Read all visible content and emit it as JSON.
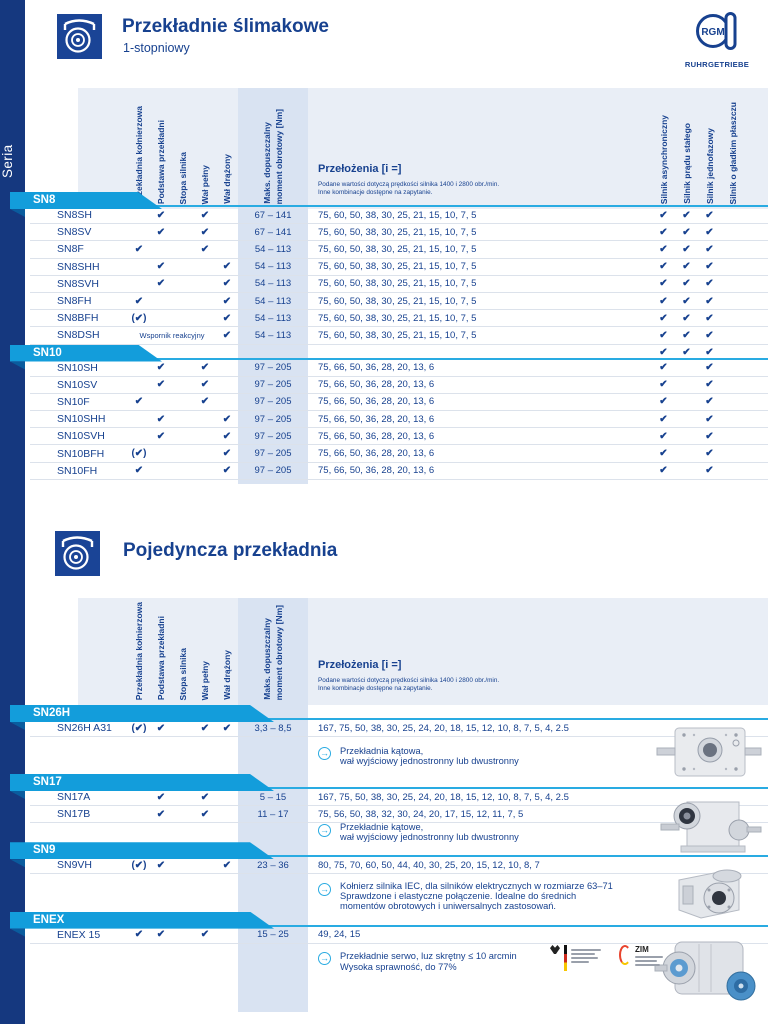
{
  "page": {
    "title": "Przekładnie ślimakowe",
    "subtitle": "1-stopniowy",
    "section2_title": "Pojedyncza przekładnia",
    "seria_label": "Seria",
    "brand": {
      "logo_text": "RGM",
      "name": "RUHRGETRIEBE"
    },
    "colors": {
      "navy": "#17418f",
      "azure_banner": "#139ddb",
      "cyan_line": "#29abe2",
      "header_panel": "#e9eef6",
      "torque_band": "#d9e3f2"
    }
  },
  "header_cols": {
    "features": [
      "Przekładnia kołnierzowa",
      "Podstawa przekładni",
      "Stopa silnika",
      "Wał pełny",
      "Wał drążony"
    ],
    "torque_lines": [
      "Maks. dopuszczalny",
      "moment obrotowy [Nm]"
    ],
    "ratios_title": "Przełożenia [i =]",
    "ratios_sub1": "Podane wartości dotyczą prędkości silnika 1400 i 2800 obr./min.",
    "ratios_sub2": "Inne kombinacje dostępne na zapytanie.",
    "motors": [
      "Silnik asynchroniczny",
      "Silnik prądu stałego",
      "Silnik jednofazowy",
      "Silnik o gładkim płaszczu"
    ]
  },
  "table1": {
    "groups": [
      {
        "name": "SN8",
        "banner_motors": [
          "",
          "",
          "",
          ""
        ],
        "rows": [
          {
            "model": "SN8SH",
            "features": [
              "",
              "✔",
              "",
              "✔",
              ""
            ],
            "torque": "67 – 141",
            "ratios": "75, 60, 50, 38, 30, 25, 21, 15, 10, 7, 5",
            "motors": [
              "✔",
              "✔",
              "✔",
              ""
            ]
          },
          {
            "model": "SN8SV",
            "features": [
              "",
              "✔",
              "",
              "✔",
              ""
            ],
            "torque": "67 – 141",
            "ratios": "75, 60, 50, 38, 30, 25, 21, 15, 10, 7, 5",
            "motors": [
              "✔",
              "✔",
              "✔",
              ""
            ]
          },
          {
            "model": "SN8F",
            "features": [
              "✔",
              "",
              "",
              "✔",
              ""
            ],
            "torque": "54 – 113",
            "ratios": "75, 60, 50, 38, 30, 25, 21, 15, 10, 7, 5",
            "motors": [
              "✔",
              "✔",
              "✔",
              ""
            ]
          },
          {
            "model": "SN8SHH",
            "features": [
              "",
              "✔",
              "",
              "",
              "✔"
            ],
            "torque": "54 – 113",
            "ratios": "75, 60, 50, 38, 30, 25, 21, 15, 10, 7, 5",
            "motors": [
              "✔",
              "✔",
              "✔",
              ""
            ]
          },
          {
            "model": "SN8SVH",
            "features": [
              "",
              "✔",
              "",
              "",
              "✔"
            ],
            "torque": "54 – 113",
            "ratios": "75, 60, 50, 38, 30, 25, 21, 15, 10, 7, 5",
            "motors": [
              "✔",
              "✔",
              "✔",
              ""
            ]
          },
          {
            "model": "SN8FH",
            "features": [
              "✔",
              "",
              "",
              "",
              "✔"
            ],
            "torque": "54 – 113",
            "ratios": "75, 60, 50, 38, 30, 25, 21, 15, 10, 7, 5",
            "motors": [
              "✔",
              "✔",
              "✔",
              ""
            ]
          },
          {
            "model": "SN8BFH",
            "features": [
              "(✔)",
              "",
              "",
              "",
              "✔"
            ],
            "torque": "54 – 113",
            "ratios": "75, 60, 50, 38, 30, 25, 21, 15, 10, 7, 5",
            "motors": [
              "✔",
              "✔",
              "✔",
              ""
            ]
          },
          {
            "model": "SN8DSH",
            "feature_note": "Wspornik reakcyjny",
            "features": [
              "",
              "",
              "",
              "",
              "✔"
            ],
            "torque": "54 – 113",
            "ratios": "75, 60, 50, 38, 30, 25, 21, 15, 10, 7, 5",
            "motors": [
              "✔",
              "✔",
              "✔",
              ""
            ]
          }
        ]
      },
      {
        "name": "SN10",
        "banner_motors": [
          "✔",
          "✔",
          "✔",
          ""
        ],
        "rows": [
          {
            "model": "SN10SH",
            "features": [
              "",
              "✔",
              "",
              "✔",
              ""
            ],
            "torque": "97 – 205",
            "ratios": "75, 66, 50, 36, 28, 20, 13, 6",
            "motors": [
              "✔",
              "",
              "✔",
              ""
            ]
          },
          {
            "model": "SN10SV",
            "features": [
              "",
              "✔",
              "",
              "✔",
              ""
            ],
            "torque": "97 – 205",
            "ratios": "75, 66, 50, 36, 28, 20, 13, 6",
            "motors": [
              "✔",
              "",
              "✔",
              ""
            ]
          },
          {
            "model": "SN10F",
            "features": [
              "✔",
              "",
              "",
              "✔",
              ""
            ],
            "torque": "97 – 205",
            "ratios": "75, 66, 50, 36, 28, 20, 13, 6",
            "motors": [
              "✔",
              "",
              "✔",
              ""
            ]
          },
          {
            "model": "SN10SHH",
            "features": [
              "",
              "✔",
              "",
              "",
              "✔"
            ],
            "torque": "97 – 205",
            "ratios": "75, 66, 50, 36, 28, 20, 13, 6",
            "motors": [
              "✔",
              "",
              "✔",
              ""
            ]
          },
          {
            "model": "SN10SVH",
            "features": [
              "",
              "✔",
              "",
              "",
              "✔"
            ],
            "torque": "97 – 205",
            "ratios": "75, 66, 50, 36, 28, 20, 13, 6",
            "motors": [
              "✔",
              "",
              "✔",
              ""
            ]
          },
          {
            "model": "SN10BFH",
            "features": [
              "(✔)",
              "",
              "",
              "",
              "✔"
            ],
            "torque": "97 – 205",
            "ratios": "75, 66, 50, 36, 28, 20, 13, 6",
            "motors": [
              "✔",
              "",
              "✔",
              ""
            ]
          },
          {
            "model": "SN10FH",
            "features": [
              "✔",
              "",
              "",
              "",
              "✔"
            ],
            "torque": "97 – 205",
            "ratios": "75, 66, 50, 36, 28, 20, 13, 6",
            "motors": [
              "✔",
              "",
              "✔",
              ""
            ]
          }
        ]
      }
    ]
  },
  "table2": {
    "groups": [
      {
        "name": "SN26H",
        "rows": [
          {
            "model": "SN26H A31",
            "features": [
              "(✔)",
              "✔",
              "",
              "✔",
              "✔"
            ],
            "torque": "3,3 – 8,5",
            "ratios": "167, 75, 50, 38, 30, 25, 24, 20, 18, 15, 12, 10, 8, 7, 5, 4, 2.5"
          }
        ],
        "note": [
          "Przekładnia kątowa,",
          "wał wyjściowy jednostronny lub dwustronny"
        ]
      },
      {
        "name": "SN17",
        "rows": [
          {
            "model": "SN17A",
            "features": [
              "",
              "✔",
              "",
              "✔",
              ""
            ],
            "torque": "5 – 15",
            "ratios": "167, 75, 50, 38, 30, 25, 24, 20, 18, 15, 12, 10, 8, 7, 5, 4, 2.5"
          },
          {
            "model": "SN17B",
            "features": [
              "",
              "✔",
              "",
              "✔",
              ""
            ],
            "torque": "11 – 17",
            "ratios": "75, 56, 50, 38, 32, 30, 24, 20, 17, 15, 12, 11, 7, 5"
          }
        ],
        "note": [
          "Przekładnie kątowe,",
          "wał wyjściowy jednostronny lub dwustronny"
        ]
      },
      {
        "name": "SN9",
        "rows": [
          {
            "model": "SN9VH",
            "features": [
              "(✔)",
              "✔",
              "",
              "",
              "✔"
            ],
            "torque": "23 – 36",
            "ratios": "80, 75, 70, 60, 50, 44, 40, 30, 25, 20, 15, 12, 10, 8, 7"
          }
        ],
        "note": [
          "Kołnierz silnika IEC, dla silników elektrycznych w rozmiarze 63–71",
          "Sprawdzone i elastyczne połączenie. Idealne do średnich",
          "momentów obrotowych i uniwersalnych zastosowań."
        ]
      },
      {
        "name": "ENEX",
        "rows": [
          {
            "model": "ENEX 15",
            "features": [
              "✔",
              "✔",
              "",
              "✔",
              ""
            ],
            "torque": "15 – 25",
            "ratios": "49, 24, 15"
          }
        ],
        "note": [
          "Przekładnie serwo, luz skrętny ≤ 10 arcmin",
          "Wysoka sprawność, do 77%"
        ]
      }
    ]
  },
  "logos": {
    "zim_text": "ZIM"
  },
  "note_icon": "→"
}
